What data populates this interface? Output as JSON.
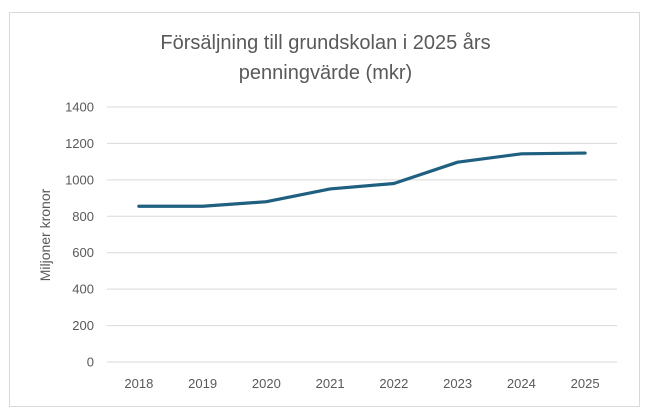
{
  "chart_data": {
    "type": "line",
    "title_lines": [
      "Försäljning till grundskolan i 2025 års",
      "penningvärde (mkr)"
    ],
    "xlabel": "",
    "ylabel": "Miljoner kronor",
    "categories": [
      "2018",
      "2019",
      "2020",
      "2021",
      "2022",
      "2023",
      "2024",
      "2025"
    ],
    "series": [
      {
        "name": "Försäljning",
        "values": [
          855,
          855,
          880,
          950,
          980,
          1097,
          1143,
          1147
        ]
      }
    ],
    "ylim": [
      0,
      1400
    ],
    "yticks": [
      0,
      200,
      400,
      600,
      800,
      1000,
      1200,
      1400
    ],
    "grid": true,
    "legend": "none",
    "line_color": "#1f5f7f"
  }
}
